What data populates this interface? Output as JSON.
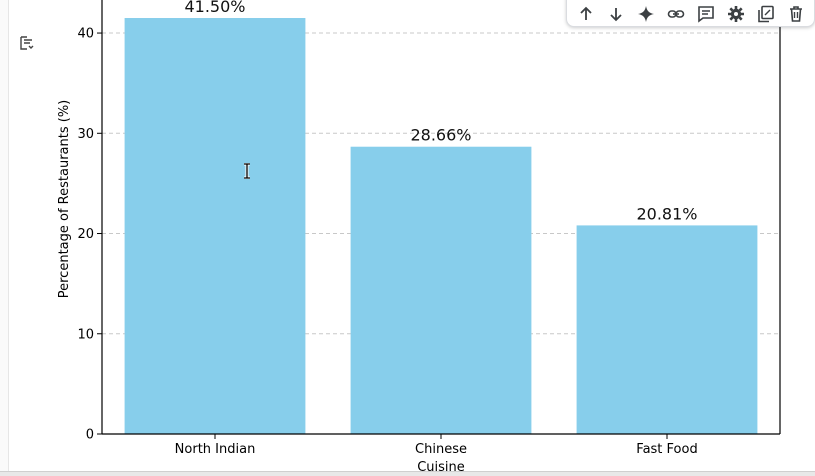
{
  "toolbar": {
    "items": [
      {
        "name": "move-up-icon"
      },
      {
        "name": "move-down-icon"
      },
      {
        "name": "sparkle-icon"
      },
      {
        "name": "link-icon"
      },
      {
        "name": "comment-icon"
      },
      {
        "name": "gear-icon"
      },
      {
        "name": "mirror-cell-icon"
      },
      {
        "name": "trash-icon"
      }
    ]
  },
  "output": {
    "toggle_icon": "output-toggle-icon"
  },
  "chart_data": {
    "type": "bar",
    "categories": [
      "North Indian",
      "Chinese",
      "Fast Food"
    ],
    "values": [
      41.5,
      28.66,
      20.81
    ],
    "data_labels": [
      "41.50%",
      "28.66%",
      "20.81%"
    ],
    "title": "",
    "xlabel": "Cuisine",
    "ylabel": "Percentage of Restaurants (%)",
    "ylim": [
      0,
      42
    ],
    "yticks": [
      0,
      10,
      20,
      30,
      40
    ],
    "grid": "horizontal dashed",
    "bar_color": "#87CEEB"
  }
}
